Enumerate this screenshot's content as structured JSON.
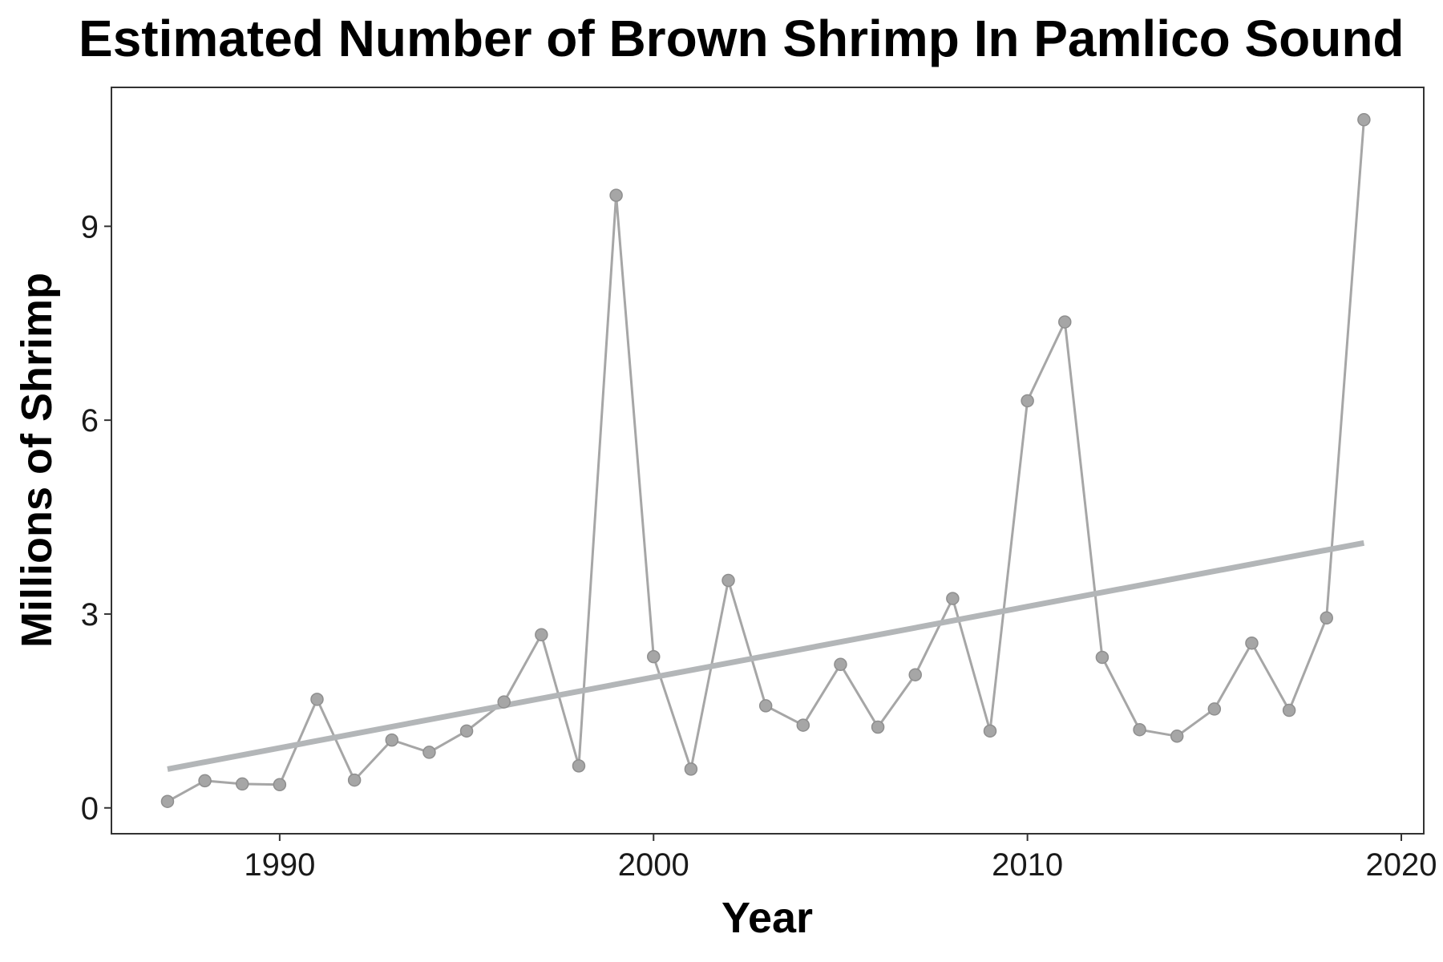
{
  "chart_data": {
    "type": "line",
    "title": "Estimated Number of Brown Shrimp In Pamlico Sound",
    "xlabel": "Year",
    "ylabel": "Millions of Shrimp",
    "xlim": [
      1985.5,
      2020.6
    ],
    "ylim": [
      -0.4,
      11.15
    ],
    "x_ticks": [
      1990,
      2000,
      2010,
      2020
    ],
    "y_ticks": [
      0,
      3,
      6,
      9
    ],
    "grid": false,
    "series": [
      {
        "style": "line+points",
        "color": "#a6a6a6",
        "x": [
          1987,
          1988,
          1989,
          1990,
          1991,
          1992,
          1993,
          1994,
          1995,
          1996,
          1997,
          1998,
          1999,
          2000,
          2001,
          2002,
          2003,
          2004,
          2005,
          2006,
          2007,
          2008,
          2009,
          2010,
          2011,
          2012,
          2013,
          2014,
          2015,
          2016,
          2017,
          2018,
          2019
        ],
        "y": [
          0.1,
          0.42,
          0.37,
          0.36,
          1.68,
          0.43,
          1.05,
          0.86,
          1.19,
          1.64,
          2.68,
          0.65,
          9.48,
          2.34,
          0.6,
          3.52,
          1.58,
          1.28,
          2.22,
          1.25,
          2.06,
          3.24,
          1.19,
          6.3,
          7.52,
          2.33,
          1.21,
          1.11,
          1.53,
          2.55,
          1.51,
          2.94,
          10.65
        ]
      },
      {
        "style": "trend",
        "color": "#b3b6b8",
        "x": [
          1987,
          2019
        ],
        "y": [
          0.6,
          4.1
        ]
      }
    ]
  }
}
